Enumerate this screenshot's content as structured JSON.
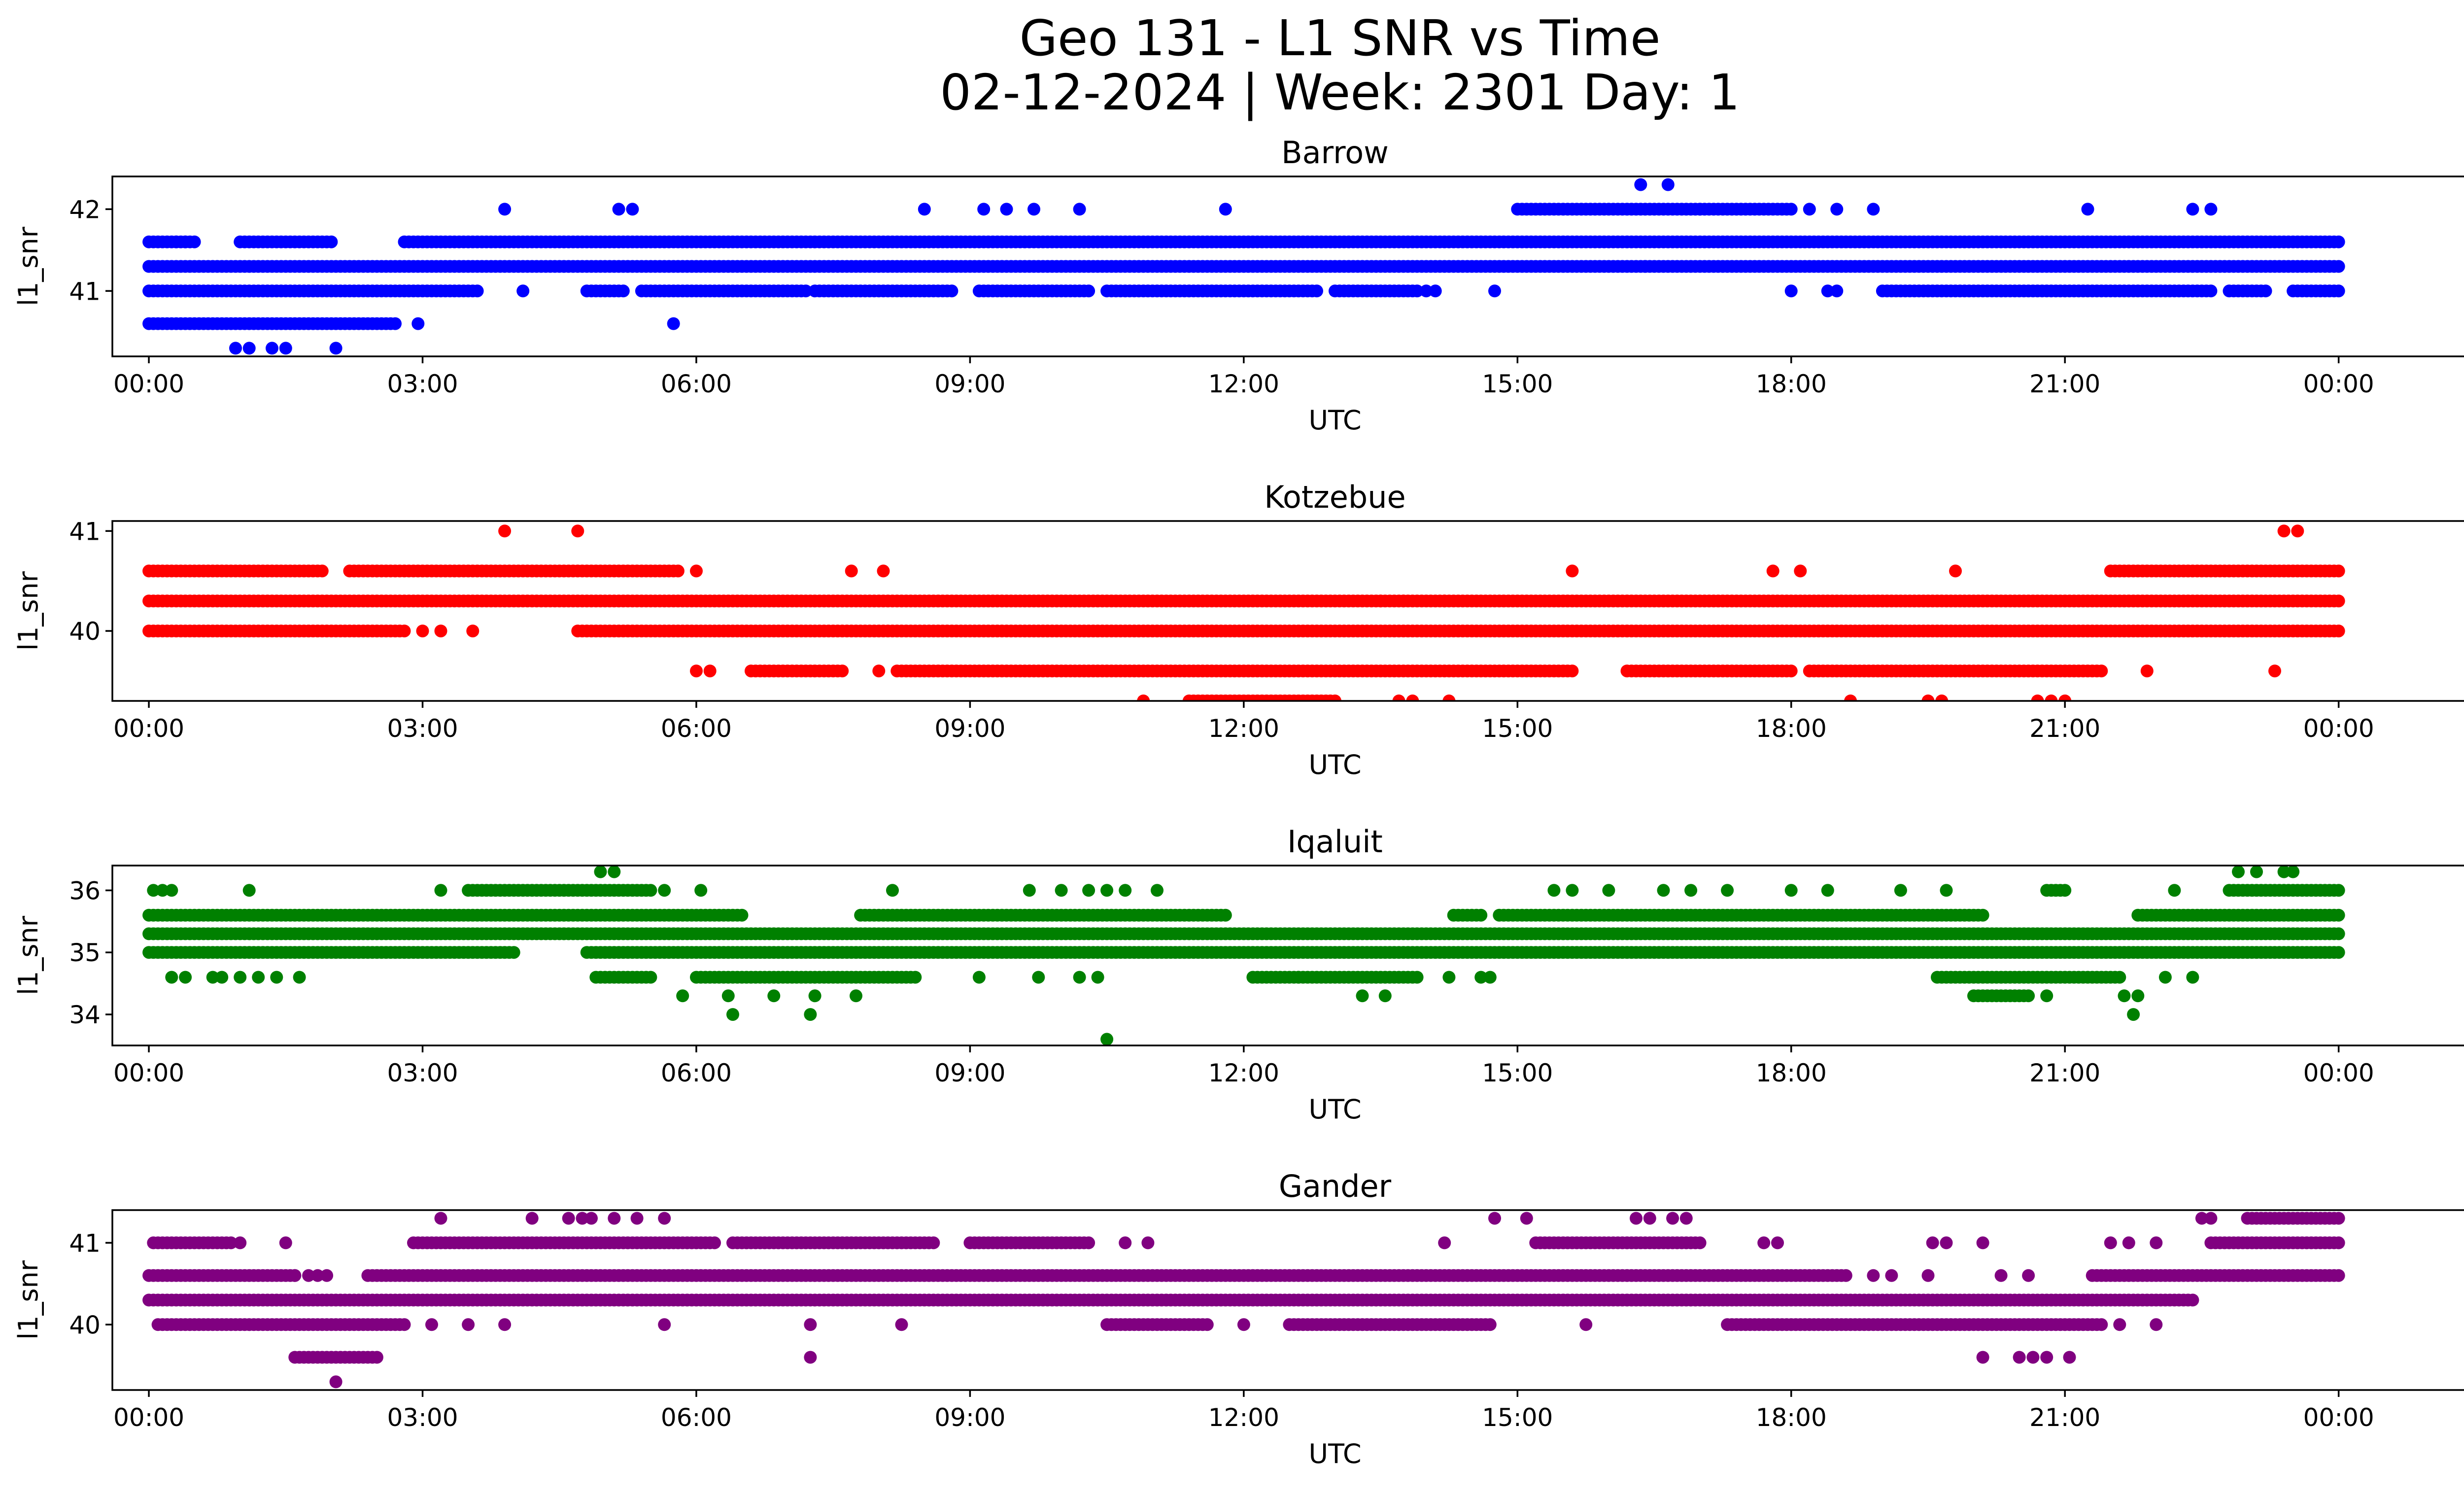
{
  "figure": {
    "title_line1": "Geo 131 - L1 SNR vs Time",
    "title_line2": "02-12-2024 | Week: 2301 Day: 1"
  },
  "chart_data": [
    {
      "type": "scatter",
      "title": "Barrow",
      "xlabel": "UTC",
      "ylabel": "l1_snr",
      "color": "#0000ff",
      "xlim": [
        -0.4,
        26.4
      ],
      "ylim": [
        40.2,
        42.4
      ],
      "xticks": [
        "00:00",
        "03:00",
        "06:00",
        "09:00",
        "12:00",
        "15:00",
        "18:00",
        "21:00",
        "00:00"
      ],
      "yticks": [
        41,
        42
      ],
      "bands": [
        {
          "y": 41.3,
          "segments": [
            [
              0,
              24
            ]
          ]
        },
        {
          "y": 41.6,
          "segments": [
            [
              0,
              0.5
            ],
            [
              1.0,
              2.0
            ],
            [
              2.8,
              24
            ]
          ]
        },
        {
          "y": 41.0,
          "segments": [
            [
              0,
              3.6
            ],
            [
              4.8,
              5.2
            ],
            [
              5.4,
              7.2
            ],
            [
              7.3,
              8.8
            ],
            [
              9.1,
              10.3
            ],
            [
              10.5,
              12.8
            ],
            [
              13.0,
              13.9
            ],
            [
              19.0,
              22.6
            ],
            [
              22.8,
              23.2
            ],
            [
              23.5,
              24
            ]
          ]
        },
        {
          "y": 40.6,
          "segments": [
            [
              0,
              2.7
            ]
          ]
        },
        {
          "y": 42.0,
          "segments": [
            [
              15.0,
              17.0
            ],
            [
              17.0,
              18.0
            ]
          ]
        }
      ],
      "points": [
        {
          "x": 3.9,
          "y": 42
        },
        {
          "x": 5.15,
          "y": 42
        },
        {
          "x": 5.3,
          "y": 42
        },
        {
          "x": 8.5,
          "y": 42
        },
        {
          "x": 9.15,
          "y": 42
        },
        {
          "x": 9.4,
          "y": 42
        },
        {
          "x": 9.7,
          "y": 42
        },
        {
          "x": 10.2,
          "y": 42
        },
        {
          "x": 11.8,
          "y": 42
        },
        {
          "x": 18.2,
          "y": 42
        },
        {
          "x": 18.5,
          "y": 42
        },
        {
          "x": 18.9,
          "y": 42
        },
        {
          "x": 21.25,
          "y": 42
        },
        {
          "x": 22.4,
          "y": 42
        },
        {
          "x": 22.6,
          "y": 42
        },
        {
          "x": 16.35,
          "y": 42.3
        },
        {
          "x": 16.65,
          "y": 42.3
        },
        {
          "x": 0.95,
          "y": 40.3
        },
        {
          "x": 1.1,
          "y": 40.3
        },
        {
          "x": 1.35,
          "y": 40.3
        },
        {
          "x": 1.5,
          "y": 40.3
        },
        {
          "x": 2.05,
          "y": 40.3
        },
        {
          "x": 0.3,
          "y": 41.6
        },
        {
          "x": 0.4,
          "y": 41.6
        },
        {
          "x": 2.95,
          "y": 40.6
        },
        {
          "x": 5.75,
          "y": 40.6
        },
        {
          "x": 4.1,
          "y": 41
        },
        {
          "x": 14.75,
          "y": 41
        },
        {
          "x": 16.4,
          "y": 41.3
        },
        {
          "x": 18.0,
          "y": 41
        },
        {
          "x": 18.4,
          "y": 41
        },
        {
          "x": 18.5,
          "y": 41
        },
        {
          "x": 14.0,
          "y": 41
        },
        {
          "x": 14.1,
          "y": 41
        }
      ]
    },
    {
      "type": "scatter",
      "title": "Kotzebue",
      "xlabel": "UTC",
      "ylabel": "l1_snr",
      "color": "#ff0000",
      "xlim": [
        -0.4,
        26.4
      ],
      "ylim": [
        39.3,
        41.1
      ],
      "xticks": [
        "00:00",
        "03:00",
        "06:00",
        "09:00",
        "12:00",
        "15:00",
        "18:00",
        "21:00",
        "00:00"
      ],
      "yticks": [
        40,
        41
      ],
      "bands": [
        {
          "y": 40.3,
          "segments": [
            [
              0,
              24
            ]
          ]
        },
        {
          "y": 40.6,
          "segments": [
            [
              0,
              1.9
            ],
            [
              2.2,
              5.8
            ],
            [
              21.5,
              24
            ]
          ]
        },
        {
          "y": 40.0,
          "segments": [
            [
              0,
              2.8
            ],
            [
              4.7,
              24
            ]
          ]
        },
        {
          "y": 39.6,
          "segments": [
            [
              6.6,
              7.6
            ],
            [
              8.2,
              15.6
            ],
            [
              16.2,
              18.0
            ],
            [
              18.2,
              21.4
            ]
          ]
        },
        {
          "y": 39.3,
          "segments": [
            [
              11.4,
              13.0
            ]
          ]
        }
      ],
      "points": [
        {
          "x": 3.9,
          "y": 41
        },
        {
          "x": 4.7,
          "y": 41
        },
        {
          "x": 23.4,
          "y": 41
        },
        {
          "x": 23.55,
          "y": 41
        },
        {
          "x": 7.7,
          "y": 40.6
        },
        {
          "x": 8.05,
          "y": 40.6
        },
        {
          "x": 6.0,
          "y": 40.6
        },
        {
          "x": 15.6,
          "y": 40.6
        },
        {
          "x": 17.8,
          "y": 40.6
        },
        {
          "x": 18.1,
          "y": 40.6
        },
        {
          "x": 19.8,
          "y": 40.6
        },
        {
          "x": 3.0,
          "y": 40
        },
        {
          "x": 3.2,
          "y": 40
        },
        {
          "x": 3.55,
          "y": 40
        },
        {
          "x": 6.0,
          "y": 39.6
        },
        {
          "x": 6.15,
          "y": 39.6
        },
        {
          "x": 8.0,
          "y": 39.6
        },
        {
          "x": 21.9,
          "y": 39.6
        },
        {
          "x": 23.3,
          "y": 39.6
        },
        {
          "x": 10.9,
          "y": 39.3
        },
        {
          "x": 13.7,
          "y": 39.3
        },
        {
          "x": 13.85,
          "y": 39.3
        },
        {
          "x": 14.25,
          "y": 39.3
        },
        {
          "x": 18.65,
          "y": 39.3
        },
        {
          "x": 19.5,
          "y": 39.3
        },
        {
          "x": 19.65,
          "y": 39.3
        },
        {
          "x": 20.7,
          "y": 39.3
        },
        {
          "x": 20.85,
          "y": 39.3
        },
        {
          "x": 21.0,
          "y": 39.3
        },
        {
          "x": 13.5,
          "y": 40.3
        },
        {
          "x": 13.75,
          "y": 40.3
        },
        {
          "x": 14.2,
          "y": 40.3
        }
      ]
    },
    {
      "type": "scatter",
      "title": "Iqaluit",
      "xlabel": "UTC",
      "ylabel": "l1_snr",
      "color": "#008000",
      "xlim": [
        -0.4,
        26.4
      ],
      "ylim": [
        33.5,
        36.4
      ],
      "xticks": [
        "00:00",
        "03:00",
        "06:00",
        "09:00",
        "12:00",
        "15:00",
        "18:00",
        "21:00",
        "00:00"
      ],
      "yticks": [
        34,
        35,
        36
      ],
      "bands": [
        {
          "y": 35.3,
          "segments": [
            [
              0,
              24
            ]
          ]
        },
        {
          "y": 35.6,
          "segments": [
            [
              0,
              6.5
            ],
            [
              7.8,
              11.8
            ],
            [
              14.3,
              14.6
            ],
            [
              14.8,
              20.1
            ],
            [
              21.8,
              24
            ]
          ]
        },
        {
          "y": 35.0,
          "segments": [
            [
              0,
              4.0
            ],
            [
              4.8,
              24
            ]
          ]
        },
        {
          "y": 36.0,
          "segments": [
            [
              3.5,
              5.5
            ],
            [
              20.8,
              21.0
            ],
            [
              22.8,
              24
            ]
          ]
        },
        {
          "y": 34.6,
          "segments": [
            [
              4.9,
              5.5
            ],
            [
              6.0,
              8.4
            ],
            [
              12.1,
              13.9
            ],
            [
              19.6,
              21.6
            ]
          ]
        },
        {
          "y": 34.3,
          "segments": [
            [
              20.0,
              20.6
            ]
          ]
        }
      ],
      "points": [
        {
          "x": 0.05,
          "y": 36
        },
        {
          "x": 0.15,
          "y": 36
        },
        {
          "x": 0.25,
          "y": 36
        },
        {
          "x": 1.1,
          "y": 36
        },
        {
          "x": 3.2,
          "y": 36
        },
        {
          "x": 5.65,
          "y": 36
        },
        {
          "x": 6.05,
          "y": 36
        },
        {
          "x": 8.15,
          "y": 36
        },
        {
          "x": 9.65,
          "y": 36
        },
        {
          "x": 10.0,
          "y": 36
        },
        {
          "x": 10.3,
          "y": 36
        },
        {
          "x": 10.5,
          "y": 36
        },
        {
          "x": 10.7,
          "y": 36
        },
        {
          "x": 11.05,
          "y": 36
        },
        {
          "x": 15.4,
          "y": 36
        },
        {
          "x": 15.6,
          "y": 36
        },
        {
          "x": 16.0,
          "y": 36
        },
        {
          "x": 16.6,
          "y": 36
        },
        {
          "x": 16.9,
          "y": 36
        },
        {
          "x": 17.3,
          "y": 36
        },
        {
          "x": 18.0,
          "y": 36
        },
        {
          "x": 18.4,
          "y": 36
        },
        {
          "x": 19.2,
          "y": 36
        },
        {
          "x": 19.7,
          "y": 36
        },
        {
          "x": 22.2,
          "y": 36
        },
        {
          "x": 4.95,
          "y": 36.3
        },
        {
          "x": 5.1,
          "y": 36.3
        },
        {
          "x": 22.9,
          "y": 36.3
        },
        {
          "x": 23.1,
          "y": 36.3
        },
        {
          "x": 23.4,
          "y": 36.3
        },
        {
          "x": 23.5,
          "y": 36.3
        },
        {
          "x": 0.25,
          "y": 34.6
        },
        {
          "x": 0.4,
          "y": 34.6
        },
        {
          "x": 0.7,
          "y": 34.6
        },
        {
          "x": 0.8,
          "y": 34.6
        },
        {
          "x": 1.0,
          "y": 34.6
        },
        {
          "x": 1.2,
          "y": 34.6
        },
        {
          "x": 1.4,
          "y": 34.6
        },
        {
          "x": 1.65,
          "y": 34.6
        },
        {
          "x": 9.1,
          "y": 34.6
        },
        {
          "x": 9.75,
          "y": 34.6
        },
        {
          "x": 10.2,
          "y": 34.6
        },
        {
          "x": 10.4,
          "y": 34.6
        },
        {
          "x": 12.6,
          "y": 34.6
        },
        {
          "x": 14.25,
          "y": 34.6
        },
        {
          "x": 14.6,
          "y": 34.6
        },
        {
          "x": 14.7,
          "y": 34.6
        },
        {
          "x": 22.1,
          "y": 34.6
        },
        {
          "x": 22.4,
          "y": 34.6
        },
        {
          "x": 5.85,
          "y": 34.3
        },
        {
          "x": 6.35,
          "y": 34.3
        },
        {
          "x": 6.85,
          "y": 34.3
        },
        {
          "x": 7.3,
          "y": 34.3
        },
        {
          "x": 7.75,
          "y": 34.3
        },
        {
          "x": 13.3,
          "y": 34.3
        },
        {
          "x": 13.55,
          "y": 34.3
        },
        {
          "x": 20.8,
          "y": 34.3
        },
        {
          "x": 21.65,
          "y": 34.3
        },
        {
          "x": 21.8,
          "y": 34.3
        },
        {
          "x": 6.4,
          "y": 34
        },
        {
          "x": 7.25,
          "y": 34
        },
        {
          "x": 21.75,
          "y": 34
        },
        {
          "x": 10.5,
          "y": 33.6
        }
      ]
    },
    {
      "type": "scatter",
      "title": "Gander",
      "xlabel": "UTC",
      "ylabel": "l1_snr",
      "color": "#800080",
      "xlim": [
        -0.4,
        26.4
      ],
      "ylim": [
        39.2,
        41.4
      ],
      "xticks": [
        "00:00",
        "03:00",
        "06:00",
        "09:00",
        "12:00",
        "15:00",
        "18:00",
        "21:00",
        "00:00"
      ],
      "yticks": [
        40,
        41
      ],
      "bands": [
        {
          "y": 40.3,
          "segments": [
            [
              0,
              22.4
            ]
          ]
        },
        {
          "y": 40.6,
          "segments": [
            [
              0,
              1.6
            ],
            [
              2.4,
              18.6
            ],
            [
              21.3,
              24
            ]
          ]
        },
        {
          "y": 40.0,
          "segments": [
            [
              0.1,
              2.8
            ],
            [
              10.5,
              11.6
            ],
            [
              12.5,
              14.7
            ],
            [
              17.3,
              21.4
            ]
          ]
        },
        {
          "y": 41.0,
          "segments": [
            [
              0.05,
              0.9
            ],
            [
              2.9,
              6.2
            ],
            [
              6.4,
              8.6
            ],
            [
              9.0,
              10.3
            ],
            [
              15.2,
              17.0
            ],
            [
              22.6,
              24
            ]
          ]
        },
        {
          "y": 41.3,
          "segments": [
            [
              23.0,
              24
            ]
          ]
        },
        {
          "y": 39.6,
          "segments": [
            [
              1.6,
              2.5
            ]
          ]
        }
      ],
      "points": [
        {
          "x": 1.0,
          "y": 41
        },
        {
          "x": 1.5,
          "y": 41
        },
        {
          "x": 10.7,
          "y": 41
        },
        {
          "x": 10.95,
          "y": 41
        },
        {
          "x": 14.2,
          "y": 41
        },
        {
          "x": 17.7,
          "y": 41
        },
        {
          "x": 17.85,
          "y": 41
        },
        {
          "x": 19.55,
          "y": 41
        },
        {
          "x": 19.7,
          "y": 41
        },
        {
          "x": 20.1,
          "y": 41
        },
        {
          "x": 21.5,
          "y": 41
        },
        {
          "x": 21.7,
          "y": 41
        },
        {
          "x": 22.0,
          "y": 41
        },
        {
          "x": 3.2,
          "y": 41.3
        },
        {
          "x": 4.2,
          "y": 41.3
        },
        {
          "x": 4.6,
          "y": 41.3
        },
        {
          "x": 4.75,
          "y": 41.3
        },
        {
          "x": 4.85,
          "y": 41.3
        },
        {
          "x": 5.1,
          "y": 41.3
        },
        {
          "x": 5.35,
          "y": 41.3
        },
        {
          "x": 5.65,
          "y": 41.3
        },
        {
          "x": 14.75,
          "y": 41.3
        },
        {
          "x": 15.1,
          "y": 41.3
        },
        {
          "x": 16.3,
          "y": 41.3
        },
        {
          "x": 16.45,
          "y": 41.3
        },
        {
          "x": 16.7,
          "y": 41.3
        },
        {
          "x": 16.85,
          "y": 41.3
        },
        {
          "x": 22.5,
          "y": 41.3
        },
        {
          "x": 22.6,
          "y": 41.3
        },
        {
          "x": 1.6,
          "y": 40.6
        },
        {
          "x": 1.75,
          "y": 40.6
        },
        {
          "x": 1.85,
          "y": 40.6
        },
        {
          "x": 1.95,
          "y": 40.6
        },
        {
          "x": 18.9,
          "y": 40.6
        },
        {
          "x": 19.1,
          "y": 40.6
        },
        {
          "x": 19.5,
          "y": 40.6
        },
        {
          "x": 20.3,
          "y": 40.6
        },
        {
          "x": 20.6,
          "y": 40.6
        },
        {
          "x": 3.1,
          "y": 40
        },
        {
          "x": 3.5,
          "y": 40
        },
        {
          "x": 3.9,
          "y": 40
        },
        {
          "x": 5.65,
          "y": 40
        },
        {
          "x": 7.25,
          "y": 40
        },
        {
          "x": 8.25,
          "y": 40
        },
        {
          "x": 12.0,
          "y": 40
        },
        {
          "x": 15.75,
          "y": 40
        },
        {
          "x": 21.6,
          "y": 40
        },
        {
          "x": 22.0,
          "y": 40
        },
        {
          "x": 7.25,
          "y": 39.6
        },
        {
          "x": 20.1,
          "y": 39.6
        },
        {
          "x": 20.5,
          "y": 39.6
        },
        {
          "x": 20.65,
          "y": 39.6
        },
        {
          "x": 20.8,
          "y": 39.6
        },
        {
          "x": 21.05,
          "y": 39.6
        },
        {
          "x": 2.05,
          "y": 39.3
        }
      ]
    }
  ]
}
